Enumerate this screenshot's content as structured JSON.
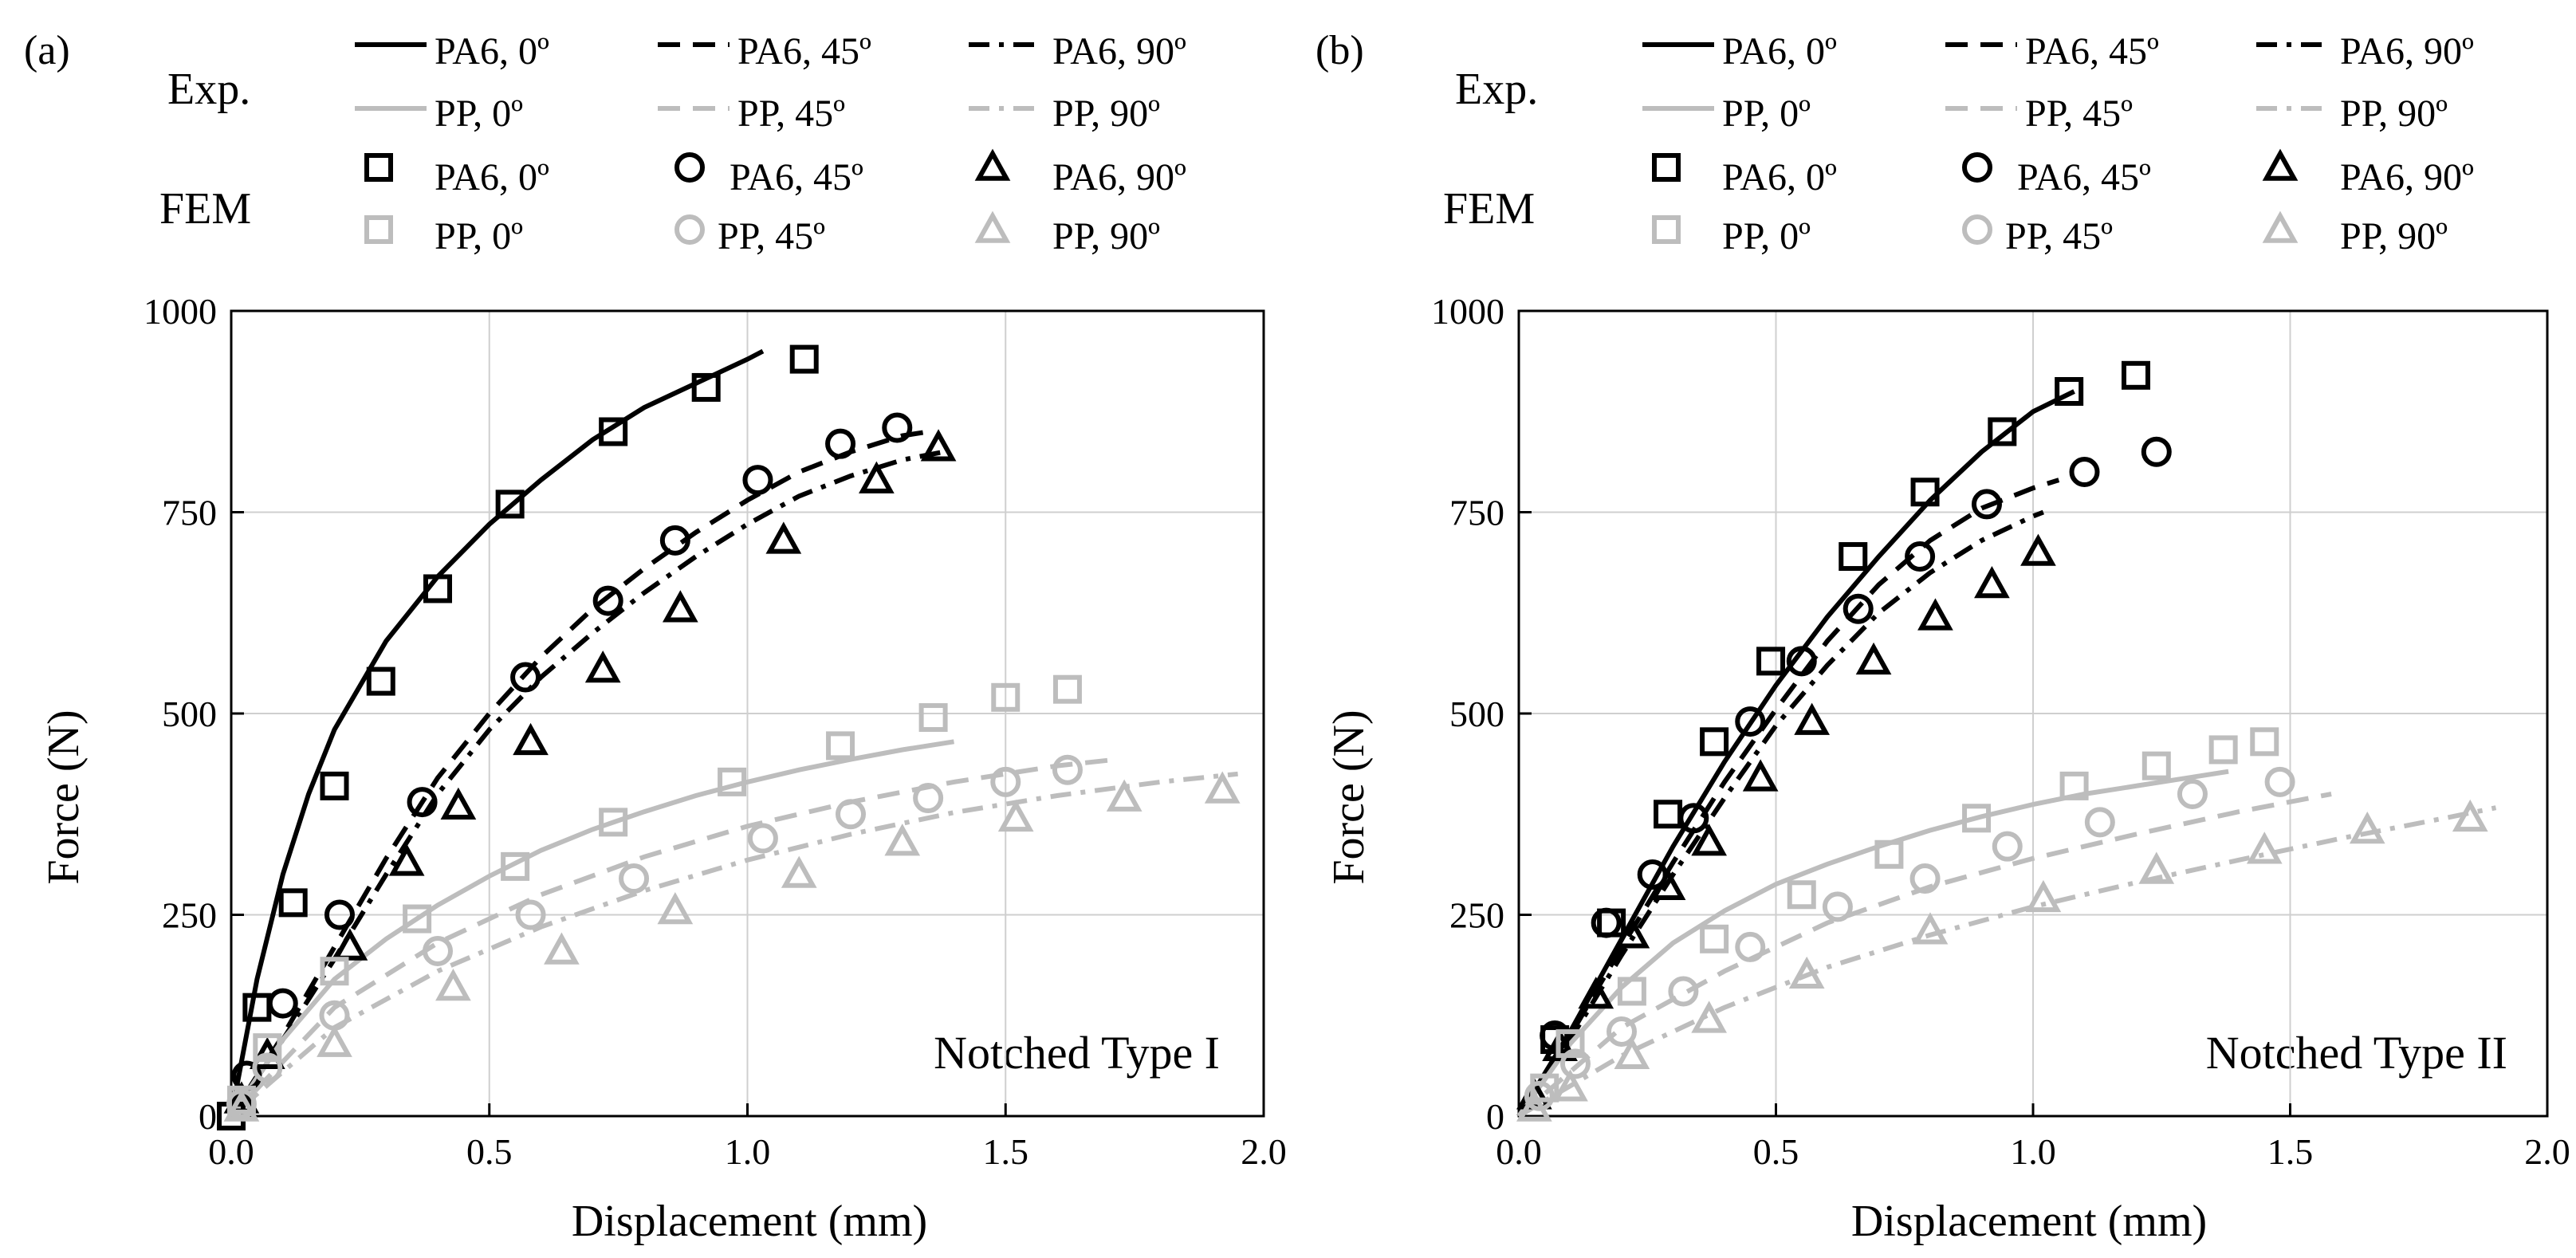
{
  "colors": {
    "pa6": "#000000",
    "pp": "#bdbdbd",
    "grid": "#cfcfcf",
    "frame": "#000000"
  },
  "legend": {
    "exp_label": "Exp.",
    "fem_label": "FEM",
    "exp_pa6": [
      "PA6, 0º",
      "PA6, 45º",
      "PA6, 90º"
    ],
    "exp_pp": [
      "PP, 0º",
      "PP, 45º",
      "PP, 90º"
    ],
    "fem_pa6": [
      "PA6, 0º",
      "PA6, 45º",
      "PA6, 90º"
    ],
    "fem_pp": [
      "PP, 0º",
      "PP, 45º",
      "PP, 90º"
    ]
  },
  "chart_data": [
    {
      "panel_label": "(a)",
      "type": "line",
      "annotation": "Notched Type I",
      "xlabel": "Displacement (mm)",
      "ylabel": "Force (N)",
      "xlim": [
        0,
        2
      ],
      "ylim": [
        0,
        1000
      ],
      "xticks": [
        "0.0",
        "0.5",
        "1.0",
        "1.5",
        "2.0"
      ],
      "yticks": [
        "0",
        "250",
        "500",
        "750",
        "1000"
      ],
      "grid": true,
      "experiment": [
        {
          "name": "PA6, 0º",
          "material": "PA6",
          "dash": "solid",
          "x": [
            0,
            0.05,
            0.1,
            0.15,
            0.2,
            0.3,
            0.4,
            0.5,
            0.6,
            0.7,
            0.8,
            0.9,
            1.0,
            1.03
          ],
          "y": [
            0,
            170,
            300,
            400,
            480,
            590,
            670,
            735,
            790,
            840,
            880,
            910,
            940,
            950
          ]
        },
        {
          "name": "PA6, 45º",
          "material": "PA6",
          "dash": "dash",
          "x": [
            0,
            0.1,
            0.2,
            0.3,
            0.4,
            0.5,
            0.6,
            0.7,
            0.8,
            0.9,
            1.0,
            1.1,
            1.2,
            1.3,
            1.35
          ],
          "y": [
            0,
            100,
            210,
            320,
            420,
            500,
            570,
            630,
            680,
            725,
            765,
            800,
            825,
            845,
            850
          ]
        },
        {
          "name": "PA6, 90º",
          "material": "PA6",
          "dash": "dashdot",
          "x": [
            0,
            0.1,
            0.2,
            0.3,
            0.4,
            0.5,
            0.6,
            0.7,
            0.8,
            0.9,
            1.0,
            1.1,
            1.2,
            1.3,
            1.38
          ],
          "y": [
            0,
            95,
            195,
            300,
            400,
            480,
            545,
            600,
            650,
            695,
            735,
            770,
            795,
            815,
            825
          ]
        },
        {
          "name": "PP, 0º",
          "material": "PP",
          "dash": "solid",
          "x": [
            0,
            0.1,
            0.2,
            0.3,
            0.4,
            0.5,
            0.6,
            0.7,
            0.8,
            0.9,
            1.0,
            1.1,
            1.2,
            1.3,
            1.4
          ],
          "y": [
            0,
            95,
            170,
            220,
            262,
            298,
            330,
            356,
            378,
            398,
            415,
            430,
            443,
            455,
            465
          ]
        },
        {
          "name": "PP, 45º",
          "material": "PP",
          "dash": "dash",
          "x": [
            0,
            0.2,
            0.4,
            0.6,
            0.8,
            1.0,
            1.2,
            1.4,
            1.6,
            1.7
          ],
          "y": [
            0,
            135,
            215,
            275,
            322,
            360,
            390,
            415,
            435,
            442
          ]
        },
        {
          "name": "PP, 90º",
          "material": "PP",
          "dash": "dashdot",
          "x": [
            0,
            0.2,
            0.4,
            0.6,
            0.8,
            1.0,
            1.2,
            1.4,
            1.6,
            1.8,
            1.95
          ],
          "y": [
            0,
            110,
            180,
            235,
            280,
            318,
            350,
            377,
            398,
            415,
            425
          ]
        }
      ],
      "fem": [
        {
          "name": "PA6, 0º",
          "material": "PA6",
          "marker": "square",
          "x": [
            0,
            0.05,
            0.12,
            0.2,
            0.29,
            0.4,
            0.54,
            0.74,
            0.92,
            1.11
          ],
          "y": [
            0,
            135,
            265,
            410,
            540,
            655,
            760,
            850,
            905,
            940
          ]
        },
        {
          "name": "PA6, 45º",
          "material": "PA6",
          "marker": "circle",
          "x": [
            0.03,
            0.1,
            0.21,
            0.37,
            0.57,
            0.73,
            0.86,
            1.02,
            1.18,
            1.29
          ],
          "y": [
            50,
            140,
            250,
            390,
            545,
            640,
            715,
            790,
            835,
            855
          ]
        },
        {
          "name": "PA6, 90º",
          "material": "PA6",
          "marker": "triangle",
          "x": [
            0.02,
            0.07,
            0.23,
            0.34,
            0.44,
            0.58,
            0.72,
            0.87,
            1.07,
            1.25,
            1.37
          ],
          "y": [
            20,
            75,
            210,
            315,
            385,
            465,
            555,
            630,
            715,
            790,
            830
          ]
        },
        {
          "name": "PP, 0º",
          "material": "PP",
          "marker": "square",
          "x": [
            0.02,
            0.07,
            0.2,
            0.36,
            0.55,
            0.74,
            0.97,
            1.18,
            1.36,
            1.5,
            1.62
          ],
          "y": [
            20,
            85,
            180,
            245,
            310,
            365,
            415,
            460,
            495,
            520,
            530
          ]
        },
        {
          "name": "PP, 45º",
          "material": "PP",
          "marker": "circle",
          "x": [
            0.02,
            0.07,
            0.2,
            0.4,
            0.58,
            0.78,
            1.03,
            1.2,
            1.35,
            1.5,
            1.62
          ],
          "y": [
            15,
            60,
            125,
            205,
            250,
            295,
            345,
            375,
            395,
            415,
            430
          ]
        },
        {
          "name": "PP, 90º",
          "material": "PP",
          "marker": "triangle",
          "x": [
            0.02,
            0.2,
            0.43,
            0.64,
            0.86,
            1.1,
            1.3,
            1.52,
            1.73,
            1.92
          ],
          "y": [
            10,
            90,
            160,
            205,
            255,
            300,
            340,
            370,
            395,
            405
          ]
        }
      ]
    },
    {
      "panel_label": "(b)",
      "type": "line",
      "annotation": "Notched Type II",
      "xlabel": "Displacement (mm)",
      "ylabel": "Force (N)",
      "xlim": [
        0,
        2
      ],
      "ylim": [
        0,
        1000
      ],
      "xticks": [
        "0.0",
        "0.5",
        "1.0",
        "1.5",
        "2.0"
      ],
      "yticks": [
        "0",
        "250",
        "500",
        "750",
        "1000"
      ],
      "grid": true,
      "experiment": [
        {
          "name": "PA6, 0º",
          "material": "PA6",
          "dash": "solid",
          "x": [
            0,
            0.1,
            0.2,
            0.3,
            0.4,
            0.5,
            0.6,
            0.7,
            0.8,
            0.9,
            1.0,
            1.08
          ],
          "y": [
            0,
            105,
            220,
            335,
            440,
            535,
            620,
            695,
            765,
            825,
            875,
            900
          ]
        },
        {
          "name": "PA6, 45º",
          "material": "PA6",
          "dash": "dash",
          "x": [
            0,
            0.1,
            0.2,
            0.3,
            0.4,
            0.5,
            0.6,
            0.7,
            0.8,
            0.9,
            1.0,
            1.05
          ],
          "y": [
            0,
            100,
            210,
            315,
            415,
            505,
            590,
            660,
            715,
            755,
            780,
            790
          ]
        },
        {
          "name": "PA6, 90º",
          "material": "PA6",
          "dash": "dashdot",
          "x": [
            0,
            0.1,
            0.2,
            0.3,
            0.4,
            0.5,
            0.6,
            0.7,
            0.8,
            0.9,
            1.0,
            1.02
          ],
          "y": [
            0,
            95,
            200,
            300,
            395,
            485,
            560,
            625,
            675,
            715,
            745,
            750
          ]
        },
        {
          "name": "PP, 0º",
          "material": "PP",
          "dash": "solid",
          "x": [
            0,
            0.1,
            0.2,
            0.3,
            0.4,
            0.5,
            0.6,
            0.7,
            0.8,
            0.9,
            1.0,
            1.1,
            1.2,
            1.3,
            1.38
          ],
          "y": [
            0,
            90,
            160,
            215,
            255,
            288,
            313,
            335,
            355,
            372,
            387,
            400,
            410,
            420,
            428
          ]
        },
        {
          "name": "PP, 45º",
          "material": "PP",
          "dash": "dash",
          "x": [
            0,
            0.2,
            0.4,
            0.6,
            0.8,
            1.0,
            1.2,
            1.4,
            1.58
          ],
          "y": [
            0,
            110,
            180,
            240,
            285,
            320,
            350,
            378,
            400
          ]
        },
        {
          "name": "PP, 90º",
          "material": "PP",
          "dash": "dashdot",
          "x": [
            0,
            0.2,
            0.4,
            0.6,
            0.8,
            1.0,
            1.2,
            1.4,
            1.6,
            1.8,
            1.9
          ],
          "y": [
            0,
            75,
            135,
            185,
            225,
            260,
            290,
            318,
            345,
            370,
            383
          ]
        }
      ],
      "fem": [
        {
          "name": "PA6, 0º",
          "material": "PA6",
          "marker": "square",
          "x": [
            0.07,
            0.18,
            0.29,
            0.38,
            0.49,
            0.65,
            0.79,
            0.94,
            1.07,
            1.2
          ],
          "y": [
            95,
            240,
            375,
            465,
            565,
            695,
            775,
            850,
            900,
            920
          ]
        },
        {
          "name": "PA6, 45º",
          "material": "PA6",
          "marker": "circle",
          "x": [
            0.07,
            0.17,
            0.26,
            0.34,
            0.45,
            0.55,
            0.66,
            0.78,
            0.91,
            1.1,
            1.24
          ],
          "y": [
            100,
            240,
            300,
            370,
            490,
            565,
            630,
            695,
            760,
            800,
            825
          ]
        },
        {
          "name": "PA6, 90º",
          "material": "PA6",
          "marker": "triangle",
          "x": [
            0.03,
            0.08,
            0.15,
            0.22,
            0.29,
            0.37,
            0.47,
            0.57,
            0.69,
            0.81,
            0.92,
            1.01
          ],
          "y": [
            25,
            85,
            150,
            225,
            285,
            340,
            420,
            490,
            565,
            620,
            660,
            700
          ]
        },
        {
          "name": "PP, 0º",
          "material": "PP",
          "marker": "square",
          "x": [
            0.05,
            0.1,
            0.22,
            0.38,
            0.55,
            0.72,
            0.89,
            1.08,
            1.24,
            1.37,
            1.45
          ],
          "y": [
            35,
            90,
            155,
            220,
            275,
            325,
            370,
            410,
            435,
            455,
            465
          ]
        },
        {
          "name": "PP, 45º",
          "material": "PP",
          "marker": "circle",
          "x": [
            0.04,
            0.11,
            0.2,
            0.32,
            0.45,
            0.62,
            0.79,
            0.95,
            1.13,
            1.31,
            1.48
          ],
          "y": [
            25,
            65,
            105,
            155,
            210,
            260,
            295,
            335,
            365,
            400,
            415
          ]
        },
        {
          "name": "PP, 90º",
          "material": "PP",
          "marker": "triangle",
          "x": [
            0.03,
            0.1,
            0.22,
            0.37,
            0.56,
            0.8,
            1.02,
            1.24,
            1.45,
            1.65,
            1.85
          ],
          "y": [
            10,
            35,
            75,
            120,
            175,
            230,
            270,
            305,
            330,
            355,
            370
          ]
        }
      ]
    }
  ]
}
